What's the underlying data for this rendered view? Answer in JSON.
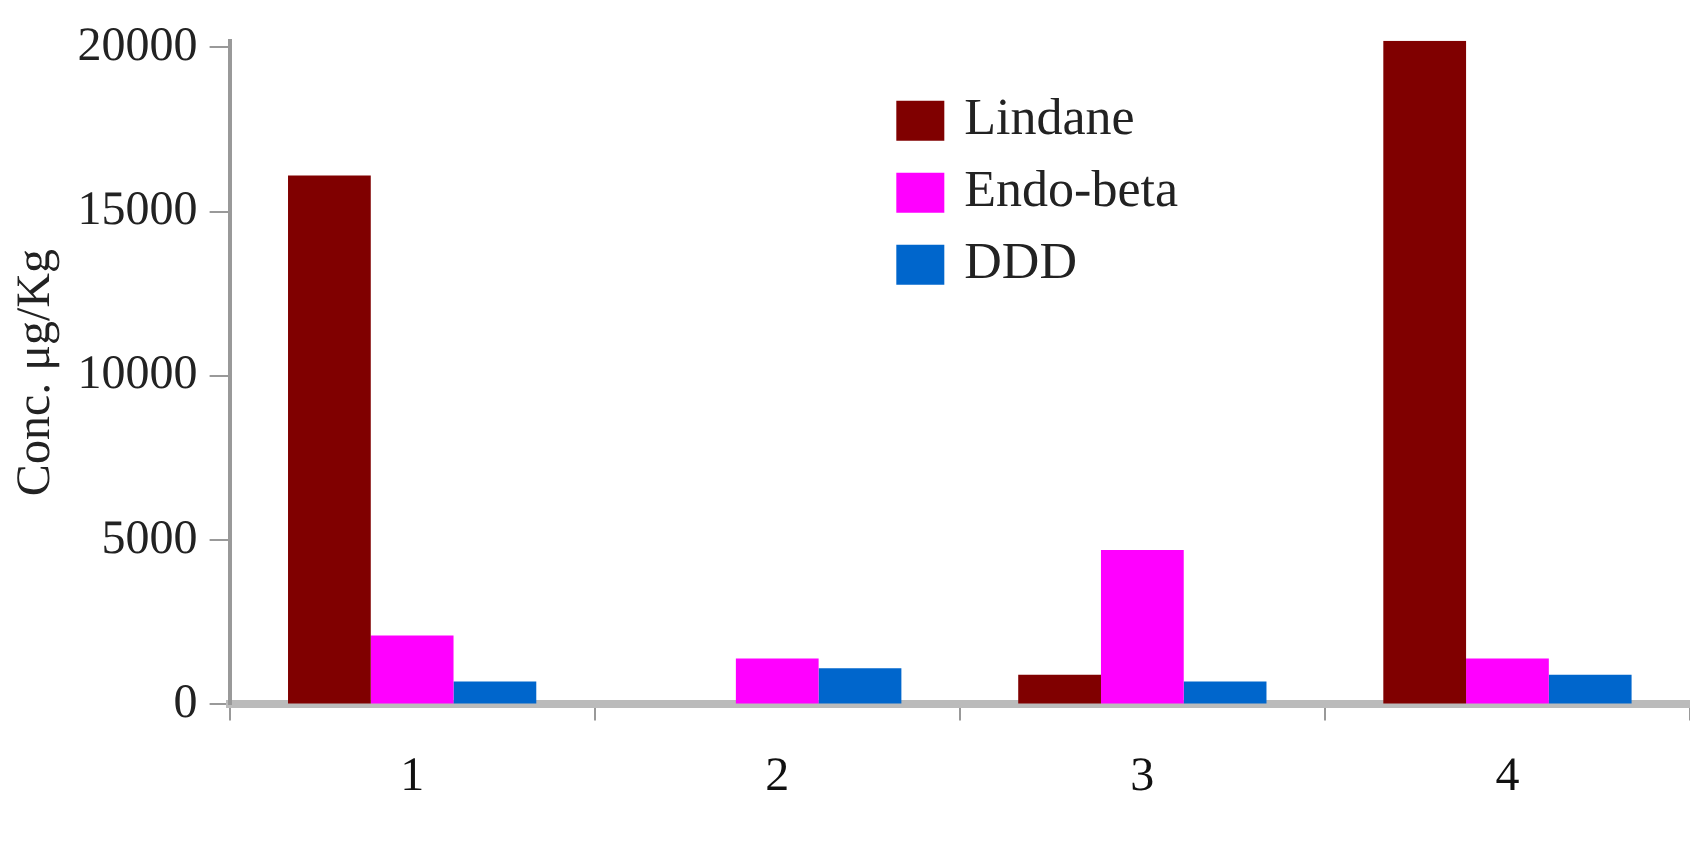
{
  "chart_data": {
    "type": "bar",
    "ylabel": "Conc. μg/Kg",
    "categories": [
      "1",
      "2",
      "3",
      "4"
    ],
    "series": [
      {
        "name": "Lindane",
        "color": "#800000",
        "values": [
          16100,
          0,
          900,
          20200
        ]
      },
      {
        "name": "Endo-beta",
        "color": "#ff00ff",
        "values": [
          2100,
          1400,
          4700,
          1400
        ]
      },
      {
        "name": "DDD",
        "color": "#0066cc",
        "values": [
          700,
          1100,
          700,
          900
        ]
      }
    ],
    "ylim": [
      0,
      20200
    ],
    "yticks": [
      0,
      5000,
      10000,
      15000,
      20000
    ],
    "grid": false,
    "legend": "top right"
  }
}
